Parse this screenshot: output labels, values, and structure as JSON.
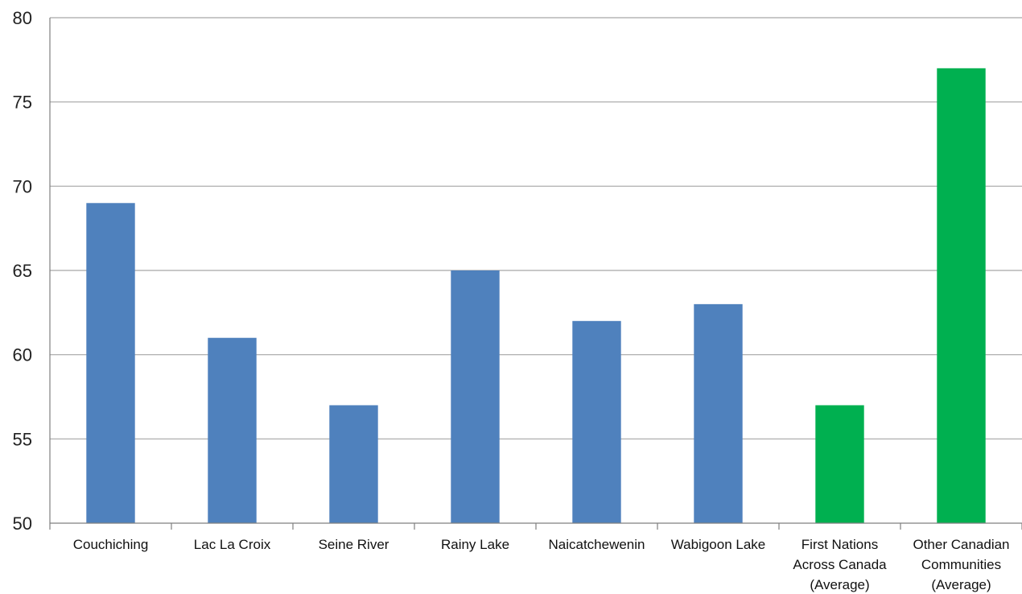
{
  "chart_data": {
    "type": "bar",
    "title": "",
    "xlabel": "",
    "ylabel": "",
    "ylim": [
      50,
      80
    ],
    "yticks": [
      50,
      55,
      60,
      65,
      70,
      75,
      80
    ],
    "grid": true,
    "legend": "none",
    "categories": [
      [
        "Couchiching"
      ],
      [
        "Lac La Croix"
      ],
      [
        "Seine River"
      ],
      [
        "Rainy Lake"
      ],
      [
        "Naicatchewenin"
      ],
      [
        "Wabigoon Lake"
      ],
      [
        "First Nations",
        "Across Canada",
        "(Average)"
      ],
      [
        "Other Canadian",
        "Communities",
        "(Average)"
      ]
    ],
    "values": [
      69,
      61,
      57,
      65,
      62,
      63,
      57,
      77
    ],
    "colors": [
      "#4f81bd",
      "#4f81bd",
      "#4f81bd",
      "#4f81bd",
      "#4f81bd",
      "#4f81bd",
      "#00b050",
      "#00b050"
    ],
    "gridline_color": "#a6a6a6",
    "axis_color": "#7f7f7f"
  }
}
